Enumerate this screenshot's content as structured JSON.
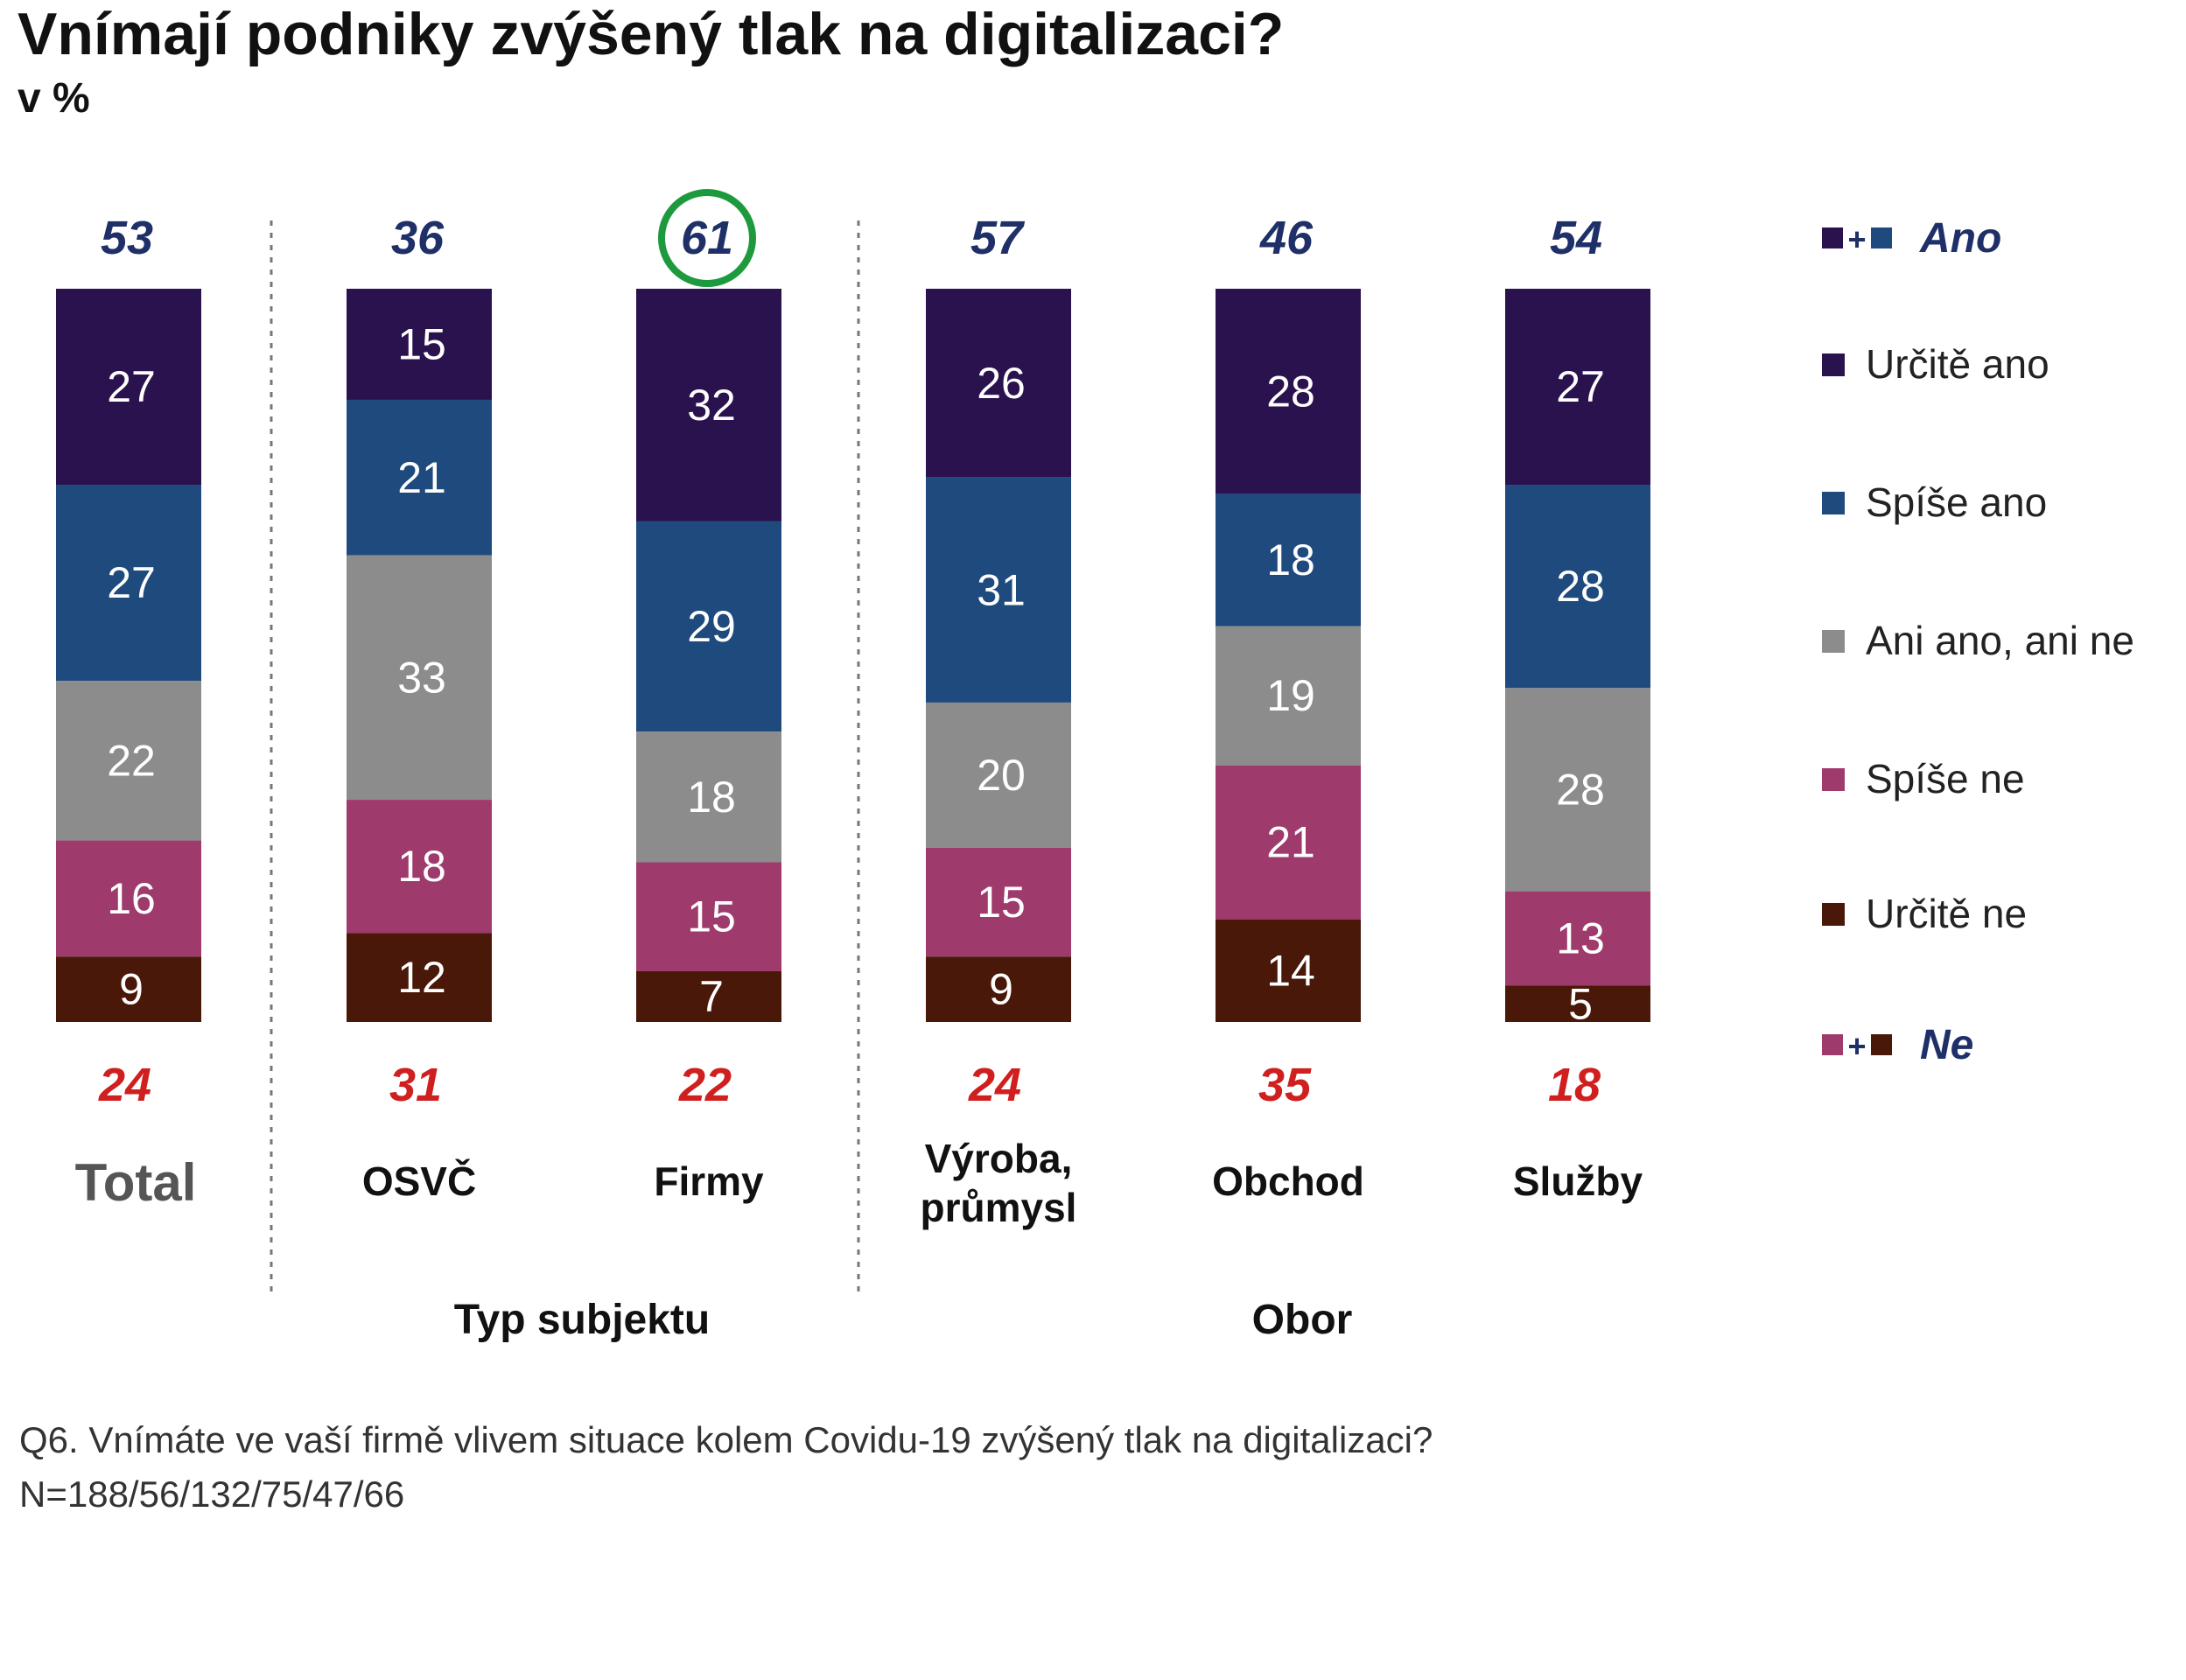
{
  "chart_data": {
    "type": "bar",
    "title": "Vnímají podniky zvýšený tlak na digitalizaci?",
    "subtitle": "v %",
    "categories": [
      "Total",
      "OSVČ",
      "Firmy",
      "Výroba, průmysl",
      "Obchod",
      "Služby"
    ],
    "groups": [
      {
        "label": "Typ subjektu",
        "categories": [
          "OSVČ",
          "Firmy"
        ]
      },
      {
        "label": "Obor",
        "categories": [
          "Výroba, průmysl",
          "Obchod",
          "Služby"
        ]
      }
    ],
    "series": [
      {
        "name": "Určitě ano",
        "color": "#2a124f",
        "values": [
          27,
          15,
          32,
          26,
          28,
          27
        ]
      },
      {
        "name": "Spíše ano",
        "color": "#1f4a7e",
        "values": [
          27,
          21,
          29,
          31,
          18,
          28
        ]
      },
      {
        "name": "Ani ano, ani ne",
        "color": "#8c8c8c",
        "values": [
          22,
          33,
          18,
          20,
          19,
          28
        ]
      },
      {
        "name": "Spíše ne",
        "color": "#9f3a6d",
        "values": [
          16,
          18,
          15,
          15,
          21,
          13
        ]
      },
      {
        "name": "Určitě ne",
        "color": "#4a1808",
        "values": [
          9,
          12,
          7,
          9,
          14,
          5
        ]
      }
    ],
    "top_totals": {
      "label": "Ano",
      "values": [
        53,
        36,
        61,
        57,
        46,
        54
      ],
      "color": "#1f3068"
    },
    "bottom_totals": {
      "label": "Ne",
      "values": [
        24,
        31,
        22,
        24,
        35,
        18
      ],
      "color": "#d01f1f"
    },
    "highlight": {
      "category": "Firmy",
      "color": "#1e9a3e"
    },
    "legend_position": "right",
    "legend_combined": {
      "ano_symbol": "■+■",
      "ne_symbol": "■+■"
    },
    "grid": false,
    "footnote": "Q6. Vnímáte ve vaší firmě vlivem situace kolem Covidu-19 zvýšený tlak na digitalizaci?",
    "sample": "N=188/56/132/75/47/66"
  }
}
